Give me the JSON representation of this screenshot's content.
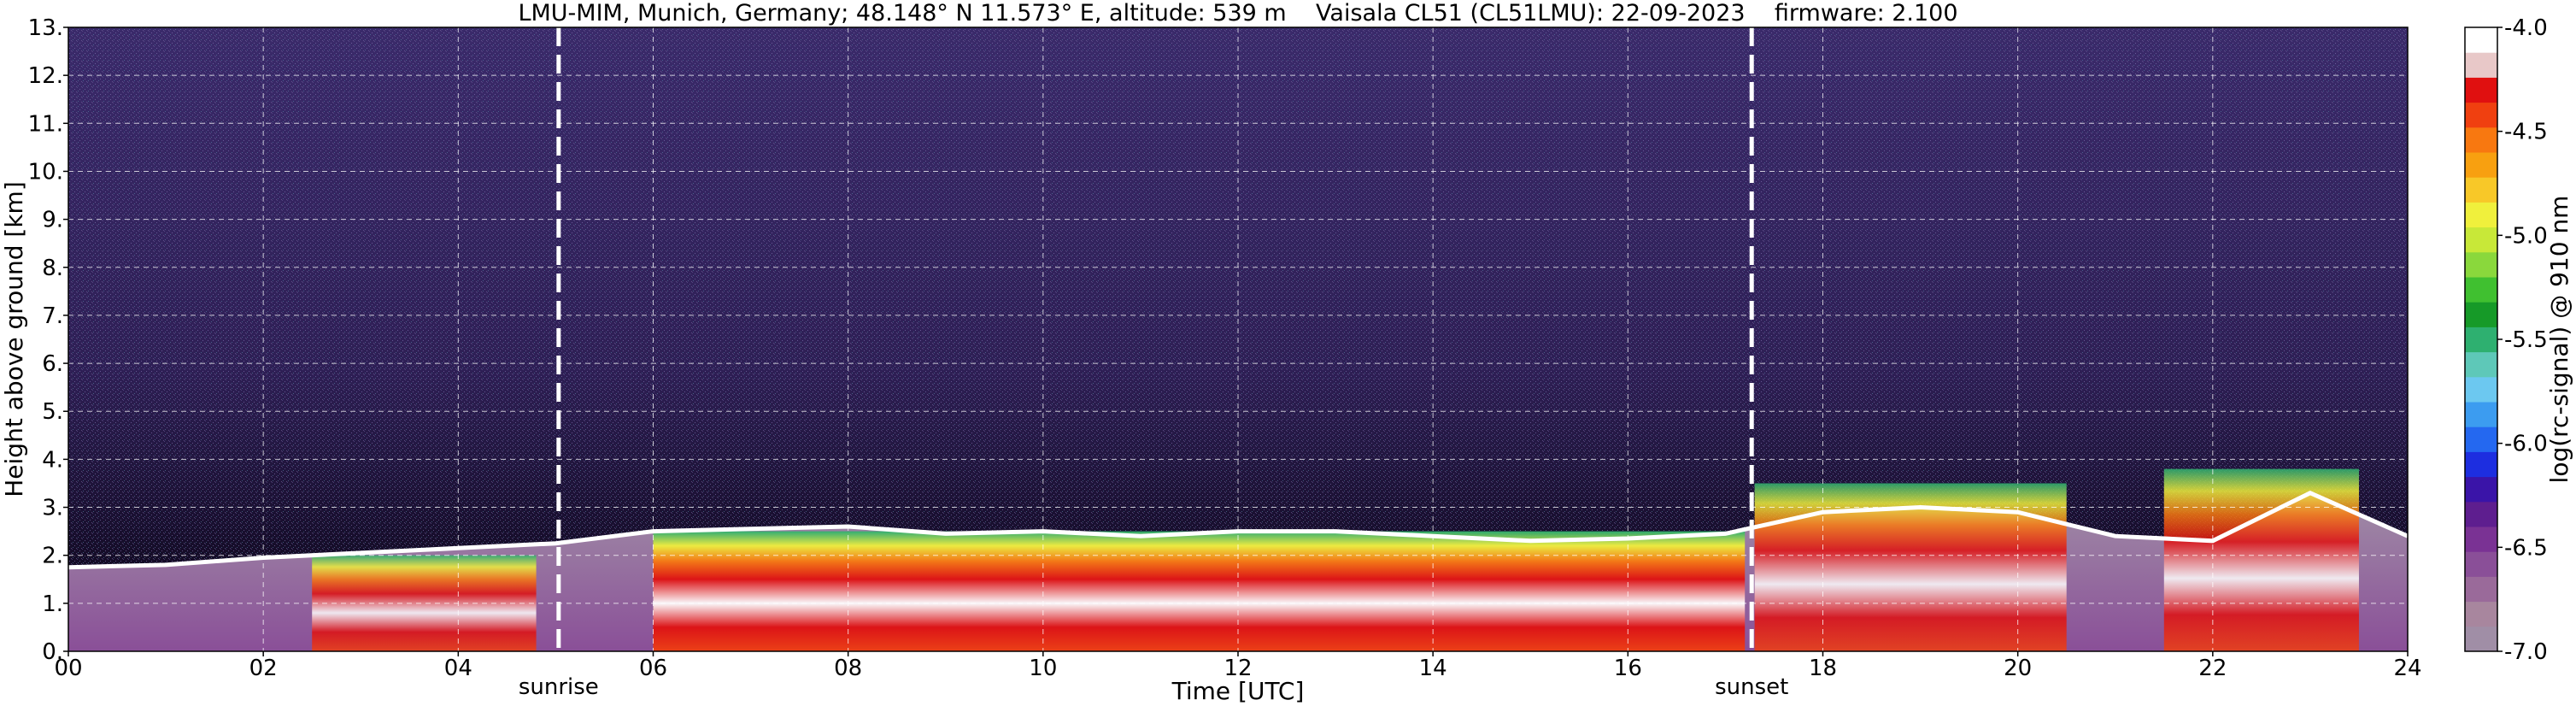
{
  "chart_data": {
    "type": "heatmap",
    "title": "LMU-MIM, Munich, Germany; 48.148° N 11.573° E, altitude: 539 m    Vaisala CL51 (CL51LMU): 22-09-2023    firmware: 2.100",
    "xlabel": "Time [UTC]",
    "ylabel": "Height above ground [km]",
    "xlim": [
      0,
      24
    ],
    "ylim": [
      0,
      13
    ],
    "x_tick_labels": [
      "00",
      "02",
      "04",
      "06",
      "08",
      "10",
      "12",
      "14",
      "16",
      "18",
      "20",
      "22",
      "24"
    ],
    "y_tick_labels": [
      "0.",
      "1.",
      "2.",
      "3.",
      "4.",
      "5.",
      "6.",
      "7.",
      "8.",
      "9.",
      "10.",
      "11.",
      "12.",
      "13."
    ],
    "grid": true,
    "annotations": [
      {
        "label": "sunrise",
        "x": 5.03
      },
      {
        "label": "sunset",
        "x": 17.27
      }
    ],
    "colorbar": {
      "label": "log(rc-signal) @ 910 nm",
      "range": [
        -7.0,
        -4.0
      ],
      "tick_labels": [
        "-7.0",
        "-6.5",
        "-6.0",
        "-5.5",
        "-5.0",
        "-4.5",
        "-4.0"
      ],
      "colors": [
        "#a08ea6",
        "#a8869e",
        "#9a6a9a",
        "#8a4f98",
        "#7a3294",
        "#5e1e8f",
        "#3a14a8",
        "#1d2ee0",
        "#2468f0",
        "#3c9cf0",
        "#6cc8f0",
        "#5ec8b8",
        "#2eb070",
        "#169a28",
        "#40c030",
        "#8ad83c",
        "#c8e838",
        "#f0f03c",
        "#f8c828",
        "#f8a010",
        "#f87810",
        "#f04010",
        "#e01010",
        "#e8c8c8",
        "#ffffff"
      ]
    },
    "boundary_layer_top_km": [
      [
        0.0,
        1.75
      ],
      [
        1.0,
        1.8
      ],
      [
        2.0,
        1.95
      ],
      [
        3.0,
        2.05
      ],
      [
        4.0,
        2.15
      ],
      [
        5.0,
        2.25
      ],
      [
        6.0,
        2.5
      ],
      [
        7.0,
        2.55
      ],
      [
        8.0,
        2.6
      ],
      [
        9.0,
        2.45
      ],
      [
        10.0,
        2.5
      ],
      [
        11.0,
        2.4
      ],
      [
        12.0,
        2.5
      ],
      [
        13.0,
        2.5
      ],
      [
        14.0,
        2.4
      ],
      [
        15.0,
        2.3
      ],
      [
        16.0,
        2.35
      ],
      [
        17.0,
        2.45
      ],
      [
        18.0,
        2.9
      ],
      [
        19.0,
        3.0
      ],
      [
        20.0,
        2.9
      ],
      [
        21.0,
        2.4
      ],
      [
        22.0,
        2.3
      ],
      [
        23.0,
        3.3
      ],
      [
        24.0,
        2.4
      ]
    ],
    "aerosol_layers": [
      {
        "x_start": 2.5,
        "x_end": 4.8,
        "y_top": 2.0,
        "intensity": "high"
      },
      {
        "x_start": 6.0,
        "x_end": 17.2,
        "y_top": 2.5,
        "intensity": "very high"
      },
      {
        "x_start": 17.3,
        "x_end": 20.5,
        "y_top": 3.5,
        "intensity": "high"
      },
      {
        "x_start": 21.5,
        "x_end": 23.5,
        "y_top": 3.8,
        "intensity": "high"
      }
    ]
  }
}
